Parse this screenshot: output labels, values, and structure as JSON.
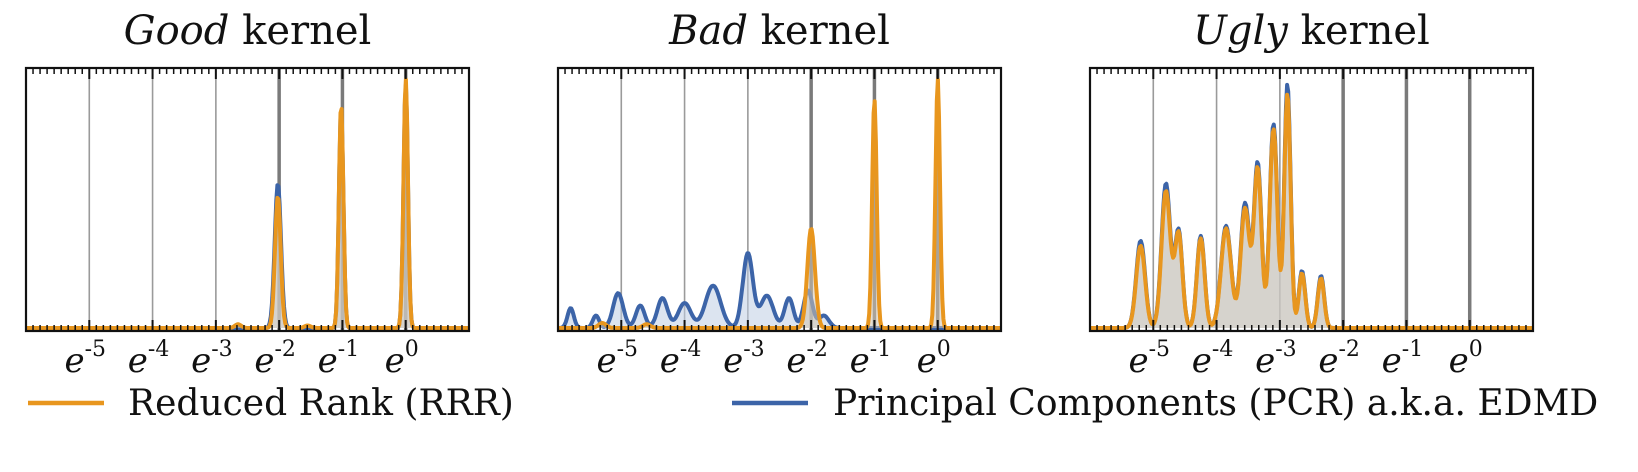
{
  "chart_data": [
    {
      "type": "area",
      "title_emph": "Good",
      "title_rest": " kernel",
      "xscale": "log (natural)",
      "xlim_exp": [
        -6.0,
        1.0
      ],
      "x_tick_exponents": [
        -5,
        -4,
        -3,
        -2,
        -1,
        0
      ],
      "x_tick_labels": [
        "-5",
        "-4",
        "-3",
        "-2",
        "-1",
        "0"
      ],
      "vlines_thin_exp": [
        -5,
        -4,
        -3
      ],
      "vlines_thick_exp": [
        -2,
        -1,
        0
      ],
      "yticks": "none",
      "grid": "vertical lines at e^k",
      "series": [
        {
          "name": "Reduced Rank (RRR)",
          "color": "#E8961E",
          "peaks": [
            {
              "mu": -2.02,
              "h": 0.53,
              "s": 0.045
            },
            {
              "mu": -1.02,
              "h": 0.9,
              "s": 0.035
            },
            {
              "mu": 0.0,
              "h": 1.0,
              "s": 0.035
            },
            {
              "mu": -2.65,
              "h": 0.015,
              "s": 0.05
            },
            {
              "mu": -1.55,
              "h": 0.01,
              "s": 0.05
            }
          ]
        },
        {
          "name": "Principal Components (PCR) a.k.a. EDMD",
          "color": "#3C64A8",
          "peaks": [
            {
              "mu": -2.02,
              "h": 0.58,
              "s": 0.05
            },
            {
              "mu": -1.02,
              "h": 0.88,
              "s": 0.035
            },
            {
              "mu": 0.0,
              "h": 0.98,
              "s": 0.035
            }
          ]
        }
      ]
    },
    {
      "type": "area",
      "title_emph": "Bad",
      "title_rest": " kernel",
      "xscale": "log (natural)",
      "xlim_exp": [
        -6.0,
        1.0
      ],
      "x_tick_exponents": [
        -5,
        -4,
        -3,
        -2,
        -1,
        0
      ],
      "x_tick_labels": [
        "-5",
        "-4",
        "-3",
        "-2",
        "-1",
        "0"
      ],
      "vlines_thin_exp": [
        -5,
        -4,
        -3
      ],
      "vlines_thick_exp": [
        -2,
        -1,
        0
      ],
      "yticks": "none",
      "grid": "vertical lines at e^k",
      "series": [
        {
          "name": "Reduced Rank (RRR)",
          "color": "#E8961E",
          "peaks": [
            {
              "mu": -2.0,
              "h": 0.4,
              "s": 0.06
            },
            {
              "mu": -1.0,
              "h": 0.92,
              "s": 0.035
            },
            {
              "mu": 0.0,
              "h": 1.0,
              "s": 0.035
            },
            {
              "mu": -5.3,
              "h": 0.02,
              "s": 0.06
            },
            {
              "mu": -4.6,
              "h": 0.015,
              "s": 0.06
            }
          ]
        },
        {
          "name": "Principal Components (PCR) a.k.a. EDMD",
          "color": "#3C64A8",
          "peaks": [
            {
              "mu": -5.8,
              "h": 0.08,
              "s": 0.05
            },
            {
              "mu": -5.4,
              "h": 0.05,
              "s": 0.05
            },
            {
              "mu": -5.05,
              "h": 0.14,
              "s": 0.08
            },
            {
              "mu": -4.7,
              "h": 0.09,
              "s": 0.07
            },
            {
              "mu": -4.35,
              "h": 0.12,
              "s": 0.08
            },
            {
              "mu": -4.0,
              "h": 0.1,
              "s": 0.1
            },
            {
              "mu": -3.55,
              "h": 0.17,
              "s": 0.12
            },
            {
              "mu": -3.0,
              "h": 0.3,
              "s": 0.08
            },
            {
              "mu": -2.7,
              "h": 0.13,
              "s": 0.1
            },
            {
              "mu": -2.35,
              "h": 0.12,
              "s": 0.07
            },
            {
              "mu": -2.05,
              "h": 0.15,
              "s": 0.07
            },
            {
              "mu": -1.8,
              "h": 0.05,
              "s": 0.08
            }
          ]
        }
      ]
    },
    {
      "type": "area",
      "title_emph": "Ugly",
      "title_rest": " kernel",
      "xscale": "log (natural)",
      "xlim_exp": [
        -6.0,
        1.0
      ],
      "x_tick_exponents": [
        -5,
        -4,
        -3,
        -2,
        -1,
        0
      ],
      "x_tick_labels": [
        "-5",
        "-4",
        "-3",
        "-2",
        "-1",
        "0"
      ],
      "vlines_thin_exp": [
        -5,
        -4,
        -3
      ],
      "vlines_thick_exp": [
        -2,
        -1,
        0
      ],
      "yticks": "none",
      "grid": "vertical lines at e^k",
      "series": [
        {
          "name": "Reduced Rank (RRR)",
          "color": "#E8961E",
          "peaks": [
            {
              "mu": -5.2,
              "h": 0.33,
              "s": 0.07
            },
            {
              "mu": -4.8,
              "h": 0.55,
              "s": 0.07
            },
            {
              "mu": -4.6,
              "h": 0.38,
              "s": 0.06
            },
            {
              "mu": -4.25,
              "h": 0.36,
              "s": 0.06
            },
            {
              "mu": -3.85,
              "h": 0.4,
              "s": 0.08
            },
            {
              "mu": -3.55,
              "h": 0.48,
              "s": 0.07
            },
            {
              "mu": -3.35,
              "h": 0.64,
              "s": 0.06
            },
            {
              "mu": -3.1,
              "h": 0.8,
              "s": 0.06
            },
            {
              "mu": -2.88,
              "h": 0.94,
              "s": 0.05
            },
            {
              "mu": -2.65,
              "h": 0.22,
              "s": 0.05
            },
            {
              "mu": -2.35,
              "h": 0.2,
              "s": 0.05
            }
          ]
        },
        {
          "name": "Principal Components (PCR) a.k.a. EDMD",
          "color": "#3C64A8",
          "peaks": [
            {
              "mu": -5.2,
              "h": 0.35,
              "s": 0.07
            },
            {
              "mu": -4.8,
              "h": 0.58,
              "s": 0.07
            },
            {
              "mu": -4.6,
              "h": 0.39,
              "s": 0.06
            },
            {
              "mu": -4.25,
              "h": 0.37,
              "s": 0.06
            },
            {
              "mu": -3.85,
              "h": 0.41,
              "s": 0.08
            },
            {
              "mu": -3.55,
              "h": 0.5,
              "s": 0.07
            },
            {
              "mu": -3.35,
              "h": 0.66,
              "s": 0.06
            },
            {
              "mu": -3.1,
              "h": 0.82,
              "s": 0.06
            },
            {
              "mu": -2.88,
              "h": 0.98,
              "s": 0.05
            },
            {
              "mu": -2.65,
              "h": 0.23,
              "s": 0.05
            },
            {
              "mu": -2.35,
              "h": 0.21,
              "s": 0.05
            }
          ]
        }
      ]
    }
  ],
  "tick_base": "e",
  "legend": {
    "items": [
      {
        "label": "Reduced Rank (RRR)",
        "color": "#E8961E"
      },
      {
        "label": "Principal Components (PCR) a.k.a. EDMD",
        "color": "#3C64A8"
      }
    ]
  },
  "colors": {
    "rrr": "#E8961E",
    "pcr": "#3C64A8",
    "fill": "#D2C4B0",
    "vline": "#9A9A9A",
    "vline_thick": "#7A7A7A"
  }
}
